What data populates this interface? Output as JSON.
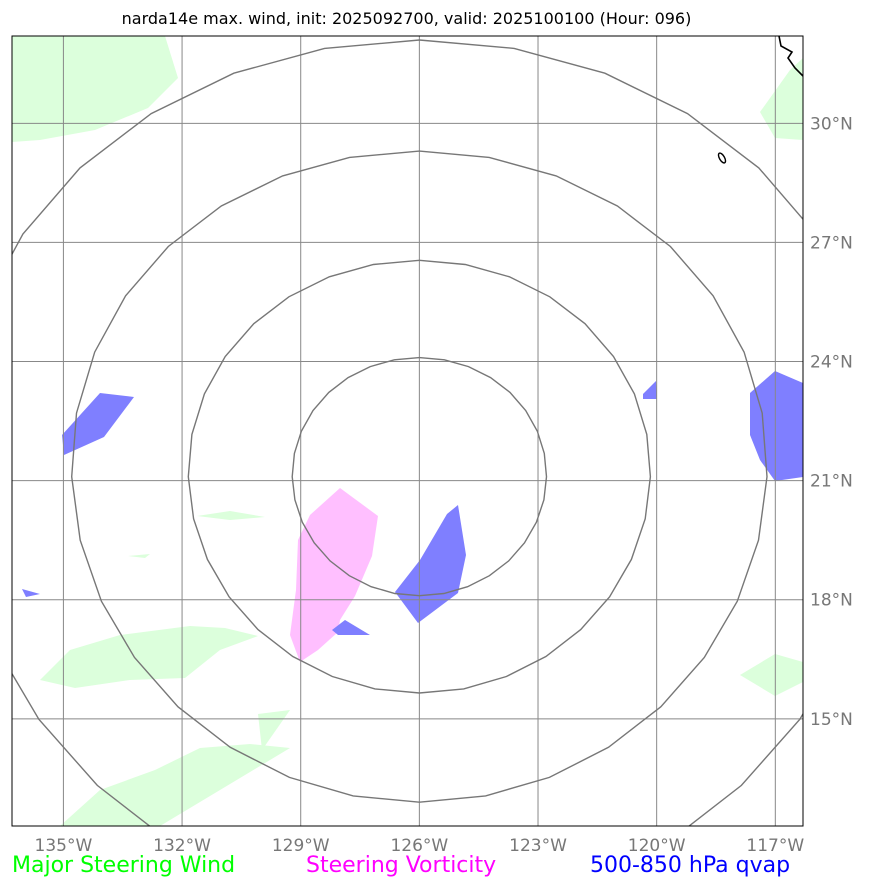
{
  "map": {
    "title": "narda14e max. wind, init: 2025092700, valid: 2025100100 (Hour: 096)",
    "lon_ticks": [
      {
        "lon": -135,
        "label": "135°W"
      },
      {
        "lon": -132,
        "label": "132°W"
      },
      {
        "lon": -129,
        "label": "129°W"
      },
      {
        "lon": -126,
        "label": "126°W"
      },
      {
        "lon": -123,
        "label": "123°W"
      },
      {
        "lon": -120,
        "label": "120°W"
      },
      {
        "lon": -117,
        "label": "117°W"
      }
    ],
    "lat_ticks": [
      {
        "lat": 30,
        "label": "30°N"
      },
      {
        "lat": 27,
        "label": "27°N"
      },
      {
        "lat": 24,
        "label": "24°N"
      },
      {
        "lat": 21,
        "label": "21°N"
      },
      {
        "lat": 18,
        "label": "18°N"
      },
      {
        "lat": 15,
        "label": "15°N"
      }
    ],
    "extent": {
      "lon_min": -136.3,
      "lon_max": -116.3,
      "lat_min": 12.3,
      "lat_max": 32.2
    },
    "storm_center": {
      "lon": -126.0,
      "lat": 21.1
    },
    "range_ring_radii_deg": [
      3.0,
      5.45,
      8.2,
      11.0
    ],
    "legend": {
      "major_steering_wind": {
        "label": "Major Steering Wind",
        "color": "#00ff00"
      },
      "steering_vorticity": {
        "label": "Steering Vorticity",
        "color": "#ff00ff"
      },
      "qvap": {
        "label": "500-850 hPa qvap",
        "color": "#0000ff"
      }
    },
    "fill_colors": {
      "green": "#dcffdc",
      "magenta": "#ffbfff",
      "blue": "#7f7fff"
    }
  }
}
